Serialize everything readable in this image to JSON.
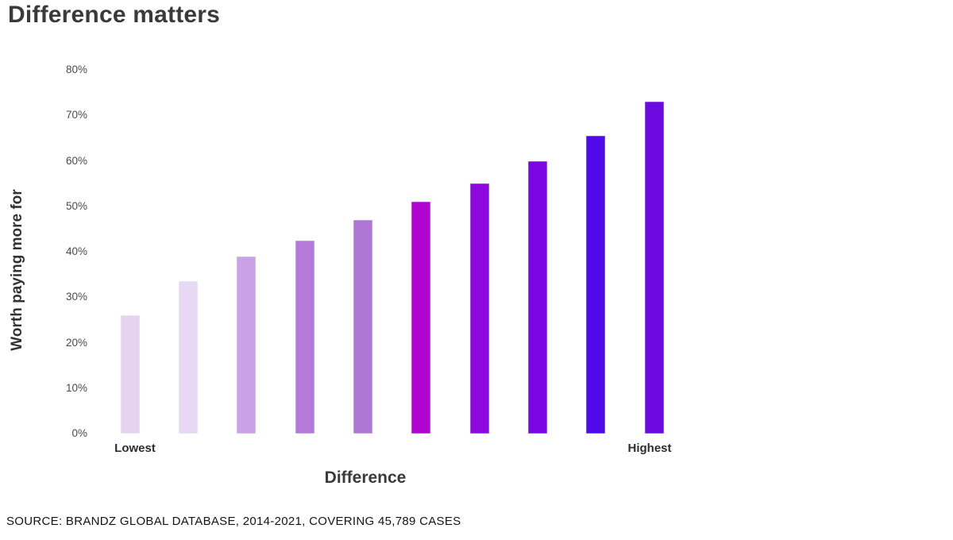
{
  "page": {
    "title": "Difference matters",
    "source_note": "SOURCE: BRANDZ GLOBAL DATABASE, 2014-2021, COVERING 45,789 CASES"
  },
  "chart_data": {
    "type": "bar",
    "title": "Difference matters",
    "xlabel": "Difference",
    "ylabel": "Worth paying more for",
    "ylim": [
      0,
      80
    ],
    "y_tick_labels": [
      "0%",
      "10%",
      "20%",
      "30%",
      "40%",
      "50%",
      "60%",
      "70%",
      "80%"
    ],
    "categories": [
      "Lowest",
      "",
      "",
      "",
      "",
      "",
      "",
      "",
      "",
      "Highest"
    ],
    "x_end_labels": {
      "left": "Lowest",
      "right": "Highest"
    },
    "values": [
      26,
      33.5,
      39,
      42.5,
      47,
      51,
      55,
      60,
      65.5,
      73
    ],
    "bar_colors": [
      "#e4d3f1",
      "#e7d8f4",
      "#c9a1e6",
      "#b37ad9",
      "#ae76d5",
      "#b104d1",
      "#8d08dc",
      "#7a06e3",
      "#5009e9",
      "#6c09e0"
    ],
    "grid": false,
    "legend": false,
    "text_color": "#3a3a3a"
  }
}
